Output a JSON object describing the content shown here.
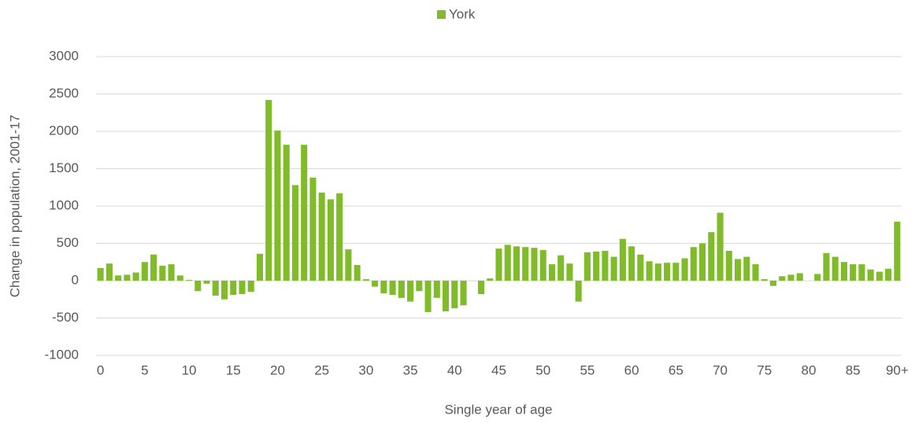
{
  "chart_data": {
    "type": "bar",
    "x_label": "Single year of age",
    "y_label": "Change in population, 2001-17",
    "categories": [
      "0",
      null,
      null,
      null,
      null,
      "5",
      null,
      null,
      null,
      null,
      "10",
      null,
      null,
      null,
      null,
      "15",
      null,
      null,
      null,
      null,
      "20",
      null,
      null,
      null,
      null,
      "25",
      null,
      null,
      null,
      null,
      "30",
      null,
      null,
      null,
      null,
      "35",
      null,
      null,
      null,
      null,
      "40",
      null,
      null,
      null,
      null,
      "45",
      null,
      null,
      null,
      null,
      "50",
      null,
      null,
      null,
      null,
      "55",
      null,
      null,
      null,
      null,
      "60",
      null,
      null,
      null,
      null,
      "65",
      null,
      null,
      null,
      null,
      "70",
      null,
      null,
      null,
      null,
      "75",
      null,
      null,
      null,
      null,
      "80",
      null,
      null,
      null,
      null,
      "85",
      null,
      null,
      null,
      null,
      "90+"
    ],
    "series": [
      {
        "name": "York",
        "color": "#80bc2a",
        "values": [
          170,
          230,
          70,
          80,
          110,
          250,
          350,
          200,
          220,
          70,
          10,
          -140,
          -40,
          -200,
          -250,
          -190,
          -180,
          -150,
          360,
          2420,
          2010,
          1820,
          1280,
          1820,
          1380,
          1180,
          1090,
          1170,
          420,
          210,
          20,
          -80,
          -170,
          -190,
          -230,
          -280,
          -140,
          -420,
          -230,
          -410,
          -370,
          -330,
          0,
          -180,
          30,
          430,
          480,
          460,
          450,
          440,
          410,
          220,
          340,
          230,
          -280,
          380,
          390,
          400,
          320,
          560,
          460,
          350,
          260,
          230,
          240,
          240,
          300,
          450,
          500,
          650,
          910,
          400,
          290,
          320,
          220,
          20,
          -70,
          60,
          80,
          100,
          0,
          90,
          370,
          320,
          250,
          220,
          220,
          150,
          120,
          160,
          790
        ]
      }
    ],
    "ylim": [
      -1000,
      3000
    ],
    "yticks": [
      -1000,
      -500,
      0,
      500,
      1000,
      1500,
      2000,
      2500,
      3000
    ],
    "grid": true,
    "legend": "top"
  }
}
